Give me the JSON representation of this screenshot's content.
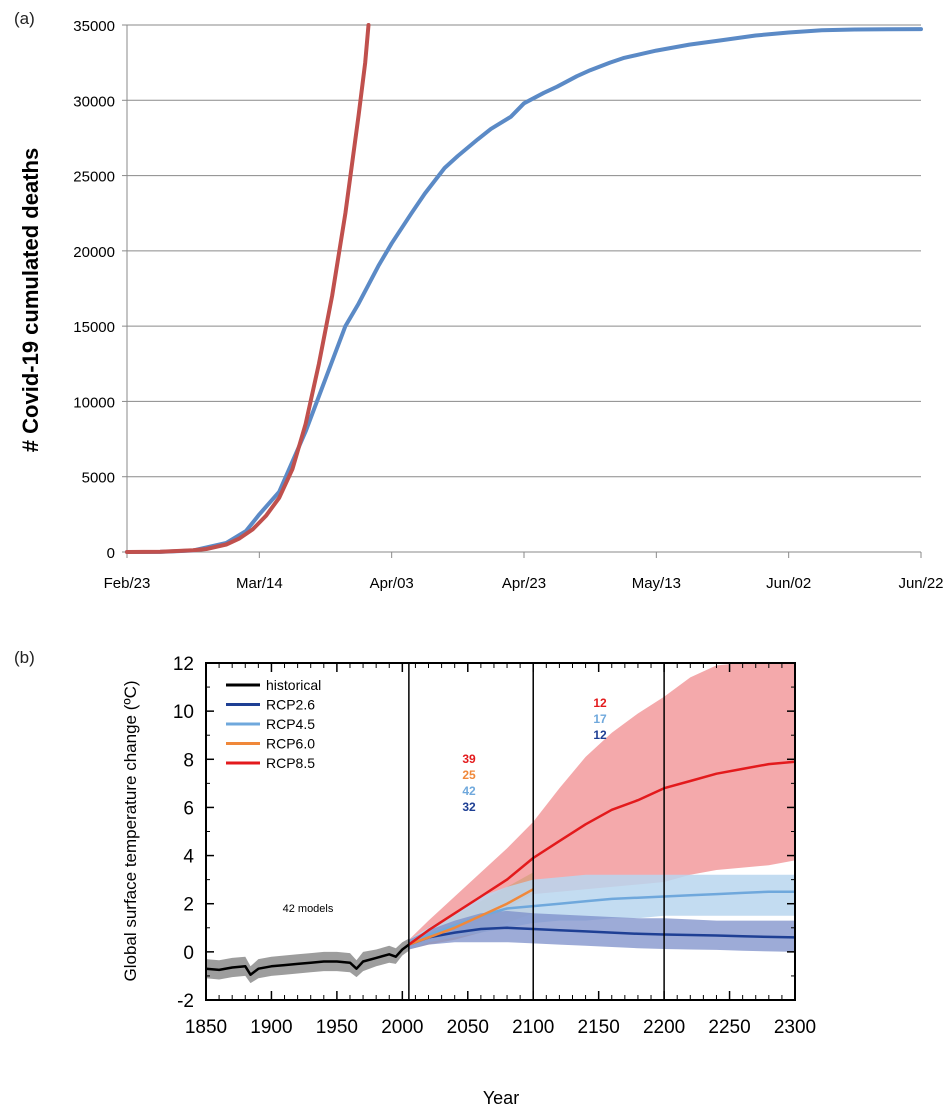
{
  "chart_data": [
    {
      "type": "line",
      "panel_label": "(a)",
      "title": "",
      "xlabel": "",
      "ylabel": "# Covid-19 cumulated deaths",
      "ylim": [
        0,
        35000
      ],
      "yticks": [
        0,
        5000,
        10000,
        15000,
        20000,
        25000,
        30000,
        35000
      ],
      "xtick_labels": [
        "Feb/23",
        "Mar/14",
        "Apr/03",
        "Apr/23",
        "May/13",
        "Jun/02",
        "Jun/22"
      ],
      "x_day_range": [
        0,
        120
      ],
      "grid": "horizontal",
      "colors": {
        "observed": "#5b8ac6",
        "exponential": "#c0504d"
      },
      "series": [
        {
          "key": "observed",
          "x": [
            0,
            5,
            10,
            15,
            18,
            20,
            23,
            25,
            27,
            30,
            33,
            35,
            38,
            40,
            43,
            45,
            48,
            50,
            53,
            55,
            58,
            60,
            63,
            65,
            68,
            70,
            73,
            75,
            78,
            80,
            85,
            90,
            95,
            100,
            105,
            110,
            115,
            120
          ],
          "values": [
            0,
            5,
            100,
            600,
            1400,
            2500,
            4000,
            6000,
            8000,
            11500,
            15000,
            16500,
            19000,
            20500,
            22500,
            23800,
            25500,
            26300,
            27400,
            28100,
            28900,
            29800,
            30500,
            30900,
            31600,
            32000,
            32500,
            32800,
            33100,
            33300,
            33700,
            34000,
            34300,
            34500,
            34650,
            34700,
            34720,
            34730
          ]
        },
        {
          "key": "exponential",
          "x": [
            0,
            5,
            10,
            12,
            15,
            17,
            19,
            21,
            23,
            25,
            27,
            29,
            31,
            33,
            35,
            36,
            36.5
          ],
          "values": [
            0,
            20,
            110,
            200,
            500,
            900,
            1500,
            2400,
            3600,
            5500,
            8500,
            12500,
            17000,
            22500,
            29000,
            32500,
            35000
          ]
        }
      ]
    },
    {
      "type": "line",
      "panel_label": "(b)",
      "title": "",
      "xlabel": "Year",
      "ylabel": "Global surface temperature change (ºC)",
      "xlim": [
        1850,
        2300
      ],
      "ylim": [
        -2,
        12
      ],
      "xticks": [
        1850,
        1900,
        1950,
        2000,
        2050,
        2100,
        2150,
        2200,
        2250,
        2300
      ],
      "yticks": [
        -2,
        0,
        2,
        4,
        6,
        8,
        10,
        12
      ],
      "vertical_lines": [
        2005,
        2100,
        2200
      ],
      "legend": {
        "placement": "top-left",
        "entries": [
          "historical",
          "RCP2.6",
          "RCP4.5",
          "RCP6.0",
          "RCP8.5"
        ]
      },
      "colors": {
        "historical": "#000000",
        "RCP2.6": "#1e3f94",
        "RCP4.5": "#6fa8dc",
        "RCP6.0": "#f0883a",
        "RCP8.5": "#e31a1c",
        "band_historical": "#8c8c8c",
        "band_rcp26": "#7c8fc9",
        "band_rcp45": "#b9d6ef",
        "band_rcp60": "#d4a07a",
        "band_rcp85": "#f29a9c"
      },
      "annotation": "42 models",
      "model_counts_2100": [
        {
          "text": "39",
          "scenario": "RCP8.5"
        },
        {
          "text": "25",
          "scenario": "RCP6.0"
        },
        {
          "text": "42",
          "scenario": "RCP4.5"
        },
        {
          "text": "32",
          "scenario": "RCP2.6"
        }
      ],
      "model_counts_2300": [
        {
          "text": "12",
          "scenario": "RCP8.5"
        },
        {
          "text": "17",
          "scenario": "RCP4.5"
        },
        {
          "text": "12",
          "scenario": "RCP2.6"
        }
      ],
      "series": [
        {
          "name": "historical",
          "x": [
            1850,
            1860,
            1870,
            1880,
            1884,
            1890,
            1900,
            1910,
            1920,
            1930,
            1940,
            1950,
            1960,
            1965,
            1970,
            1980,
            1990,
            1995,
            2000,
            2005
          ],
          "values": [
            -0.7,
            -0.75,
            -0.65,
            -0.6,
            -0.95,
            -0.7,
            -0.6,
            -0.55,
            -0.5,
            -0.45,
            -0.4,
            -0.4,
            -0.45,
            -0.7,
            -0.4,
            -0.25,
            -0.1,
            -0.2,
            0.1,
            0.3
          ],
          "band_lo": [
            -1.1,
            -1.15,
            -1.05,
            -1.0,
            -1.3,
            -1.1,
            -1.0,
            -0.95,
            -0.9,
            -0.85,
            -0.8,
            -0.8,
            -0.85,
            -1.05,
            -0.8,
            -0.6,
            -0.45,
            -0.5,
            -0.15,
            0.05
          ],
          "band_hi": [
            -0.3,
            -0.35,
            -0.25,
            -0.2,
            -0.6,
            -0.3,
            -0.2,
            -0.15,
            -0.1,
            -0.05,
            0.0,
            0.0,
            -0.05,
            -0.35,
            0.0,
            0.1,
            0.25,
            0.15,
            0.4,
            0.55
          ]
        },
        {
          "name": "RCP8.5",
          "x": [
            2005,
            2020,
            2040,
            2060,
            2080,
            2100,
            2120,
            2140,
            2160,
            2180,
            2200,
            2220,
            2240,
            2260,
            2280,
            2300
          ],
          "values": [
            0.3,
            0.9,
            1.6,
            2.3,
            3.0,
            3.9,
            4.6,
            5.3,
            5.9,
            6.3,
            6.8,
            7.1,
            7.4,
            7.6,
            7.8,
            7.9
          ],
          "band_lo": [
            0.1,
            0.5,
            0.9,
            1.3,
            1.8,
            2.4,
            2.5,
            2.6,
            2.7,
            2.8,
            2.9,
            3.2,
            3.4,
            3.5,
            3.6,
            3.8
          ],
          "band_hi": [
            0.5,
            1.3,
            2.3,
            3.3,
            4.3,
            5.4,
            6.8,
            8.1,
            9.1,
            9.9,
            10.6,
            11.4,
            11.9,
            12.0,
            12.0,
            12.0
          ]
        },
        {
          "name": "RCP6.0",
          "x": [
            2005,
            2020,
            2040,
            2060,
            2080,
            2100
          ],
          "values": [
            0.3,
            0.6,
            1.0,
            1.5,
            2.0,
            2.6
          ],
          "band_lo": [
            0.1,
            0.3,
            0.5,
            0.8,
            1.2,
            1.6
          ],
          "band_hi": [
            0.5,
            0.9,
            1.5,
            2.1,
            2.7,
            3.3
          ]
        },
        {
          "name": "RCP4.5",
          "x": [
            2005,
            2020,
            2040,
            2060,
            2080,
            2100,
            2120,
            2140,
            2160,
            2180,
            2200,
            2220,
            2240,
            2260,
            2280,
            2300
          ],
          "values": [
            0.3,
            0.7,
            1.1,
            1.5,
            1.8,
            1.9,
            2.0,
            2.1,
            2.2,
            2.25,
            2.3,
            2.35,
            2.4,
            2.45,
            2.5,
            2.5
          ],
          "band_lo": [
            0.1,
            0.4,
            0.6,
            0.8,
            1.0,
            1.2,
            1.3,
            1.3,
            1.4,
            1.4,
            1.5,
            1.5,
            1.5,
            1.5,
            1.5,
            1.5
          ],
          "band_hi": [
            0.5,
            1.0,
            1.6,
            2.3,
            2.7,
            3.0,
            3.1,
            3.2,
            3.2,
            3.2,
            3.2,
            3.2,
            3.2,
            3.2,
            3.2,
            3.2
          ]
        },
        {
          "name": "RCP2.6",
          "x": [
            2005,
            2020,
            2040,
            2060,
            2080,
            2100,
            2120,
            2140,
            2160,
            2180,
            2200,
            2220,
            2240,
            2260,
            2280,
            2300
          ],
          "values": [
            0.3,
            0.6,
            0.8,
            0.95,
            1.0,
            0.95,
            0.9,
            0.85,
            0.8,
            0.75,
            0.72,
            0.7,
            0.68,
            0.65,
            0.62,
            0.6
          ],
          "band_lo": [
            0.1,
            0.3,
            0.4,
            0.4,
            0.4,
            0.35,
            0.3,
            0.25,
            0.2,
            0.15,
            0.12,
            0.1,
            0.08,
            0.05,
            0.02,
            0.0
          ],
          "band_hi": [
            0.5,
            0.9,
            1.3,
            1.6,
            1.7,
            1.6,
            1.55,
            1.5,
            1.45,
            1.4,
            1.4,
            1.35,
            1.3,
            1.3,
            1.3,
            1.3
          ]
        }
      ]
    }
  ]
}
